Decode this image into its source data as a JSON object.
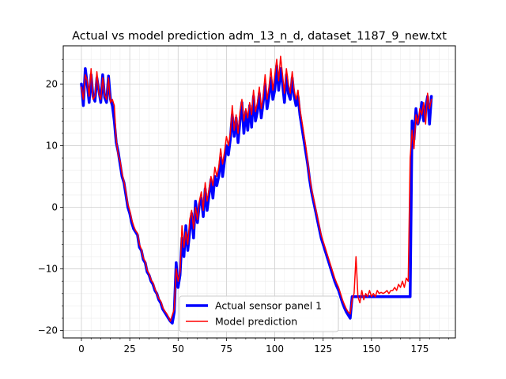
{
  "chart_data": {
    "type": "line",
    "title": "Actual vs model prediction adm_13_n_d, dataset_1187_9_new.txt",
    "xlabel": "",
    "ylabel": "",
    "xlim": [
      -9.4,
      193.4
    ],
    "ylim": [
      -21.2,
      26.2
    ],
    "xticks": [
      0,
      25,
      50,
      75,
      100,
      125,
      150,
      175
    ],
    "yticks": [
      -20,
      -10,
      0,
      10,
      20
    ],
    "grid": true,
    "minor_grid": true,
    "legend": "lower-center",
    "series": [
      {
        "name": "Actual sensor panel 1",
        "color": "#0000ff",
        "y": [
          20.0,
          16.5,
          22.5,
          20.0,
          17.0,
          21.5,
          18.0,
          17.2,
          21.0,
          19.0,
          17.0,
          21.5,
          17.8,
          17.0,
          21.3,
          17.5,
          16.5,
          14.0,
          10.5,
          9.0,
          7.0,
          5.0,
          4.0,
          2.0,
          0.0,
          -1.0,
          -2.5,
          -3.5,
          -4.0,
          -4.5,
          -6.5,
          -7.0,
          -8.5,
          -9.0,
          -10.5,
          -11.0,
          -12.0,
          -12.5,
          -13.5,
          -14.0,
          -15.0,
          -15.5,
          -16.5,
          -17.0,
          -17.5,
          -18.0,
          -18.5,
          -18.8,
          -17.0,
          -9.0,
          -13.0,
          -11.0,
          -5.0,
          -8.0,
          -3.0,
          -7.0,
          -4.0,
          -1.0,
          -5.0,
          1.0,
          -2.5,
          0.5,
          1.5,
          -1.5,
          3.0,
          -0.5,
          2.0,
          4.5,
          1.5,
          5.0,
          3.5,
          5.0,
          8.0,
          5.0,
          7.5,
          10.0,
          8.5,
          11.0,
          15.0,
          11.5,
          14.5,
          10.5,
          14.0,
          17.0,
          12.0,
          15.5,
          12.5,
          16.5,
          13.0,
          18.0,
          14.0,
          15.5,
          18.5,
          14.5,
          17.0,
          20.0,
          16.0,
          18.0,
          21.0,
          17.5,
          19.0,
          23.0,
          19.0,
          22.5,
          20.0,
          17.0,
          21.5,
          18.5,
          17.5,
          21.0,
          18.0,
          16.5,
          18.0,
          15.0,
          13.0,
          11.0,
          9.0,
          7.0,
          4.5,
          2.5,
          1.0,
          -0.5,
          -2.0,
          -3.5,
          -5.0,
          -6.0,
          -7.0,
          -8.0,
          -9.0,
          -10.0,
          -11.0,
          -12.0,
          -12.8,
          -13.5,
          -14.5,
          -15.5,
          -16.3,
          -17.0,
          -17.5,
          -18.0,
          -14.5,
          -14.5,
          -14.5,
          -14.5,
          -14.5,
          -14.5,
          -14.5,
          -14.5,
          -14.5,
          -14.5,
          -14.5,
          -14.5,
          -14.5,
          -14.5,
          -14.5,
          -14.5,
          -14.5,
          -14.5,
          -14.5,
          -14.5,
          -14.5,
          -14.5,
          -14.5,
          -14.5,
          -14.5,
          -14.5,
          -14.5,
          -14.5,
          -14.5,
          -14.5,
          -14.5,
          14.0,
          11.0,
          16.0,
          13.5,
          14.5,
          17.0,
          14.0,
          16.0,
          18.0,
          13.5,
          18.0
        ]
      },
      {
        "name": "Model prediction",
        "color": "#ff0000",
        "y": [
          19.5,
          17.5,
          21.5,
          20.5,
          18.0,
          22.5,
          17.5,
          18.0,
          22.0,
          18.5,
          17.5,
          21.0,
          18.2,
          17.5,
          21.0,
          17.0,
          17.5,
          16.5,
          11.0,
          8.5,
          7.5,
          5.5,
          4.2,
          2.5,
          0.5,
          -0.5,
          -2.0,
          -3.0,
          -3.8,
          -4.2,
          -6.0,
          -6.8,
          -8.2,
          -8.8,
          -10.2,
          -10.8,
          -11.8,
          -12.2,
          -13.2,
          -14.0,
          -14.8,
          -15.2,
          -16.2,
          -16.8,
          -17.2,
          -17.8,
          -18.5,
          -17.5,
          -16.5,
          -10.0,
          -12.0,
          -10.5,
          -3.0,
          -6.5,
          -4.0,
          -6.0,
          -2.0,
          -0.5,
          -3.5,
          0.0,
          -2.0,
          1.0,
          2.5,
          -0.5,
          4.0,
          1.0,
          3.0,
          5.0,
          3.5,
          6.5,
          5.0,
          6.5,
          9.5,
          7.0,
          9.0,
          11.5,
          10.0,
          12.0,
          16.5,
          12.5,
          15.0,
          12.0,
          15.5,
          17.5,
          14.0,
          16.0,
          14.5,
          17.0,
          15.0,
          19.0,
          15.5,
          17.0,
          19.5,
          16.0,
          18.0,
          21.5,
          17.5,
          19.5,
          22.5,
          19.0,
          21.5,
          24.0,
          20.5,
          24.5,
          21.5,
          18.5,
          22.5,
          20.0,
          18.5,
          22.0,
          19.0,
          17.5,
          19.0,
          16.0,
          14.0,
          12.0,
          10.0,
          7.5,
          5.0,
          3.0,
          1.5,
          0.0,
          -1.5,
          -3.0,
          -4.5,
          -5.5,
          -6.5,
          -7.5,
          -8.5,
          -9.5,
          -10.5,
          -11.5,
          -12.3,
          -13.0,
          -14.0,
          -15.0,
          -15.8,
          -16.5,
          -17.0,
          -17.3,
          -15.0,
          -14.0,
          -8.0,
          -14.5,
          -15.5,
          -13.5,
          -15.0,
          -14.0,
          -14.5,
          -13.5,
          -14.5,
          -14.0,
          -14.5,
          -13.5,
          -14.0,
          -13.8,
          -14.0,
          -13.8,
          -13.5,
          -14.0,
          -13.5,
          -13.5,
          -13.0,
          -13.5,
          -12.5,
          -13.0,
          -12.0,
          -13.0,
          -11.5,
          -12.0,
          8.0,
          12.5,
          9.5,
          15.0,
          13.5,
          16.0,
          15.0,
          17.0,
          13.5,
          18.5,
          16.0,
          17.5
        ]
      }
    ]
  }
}
